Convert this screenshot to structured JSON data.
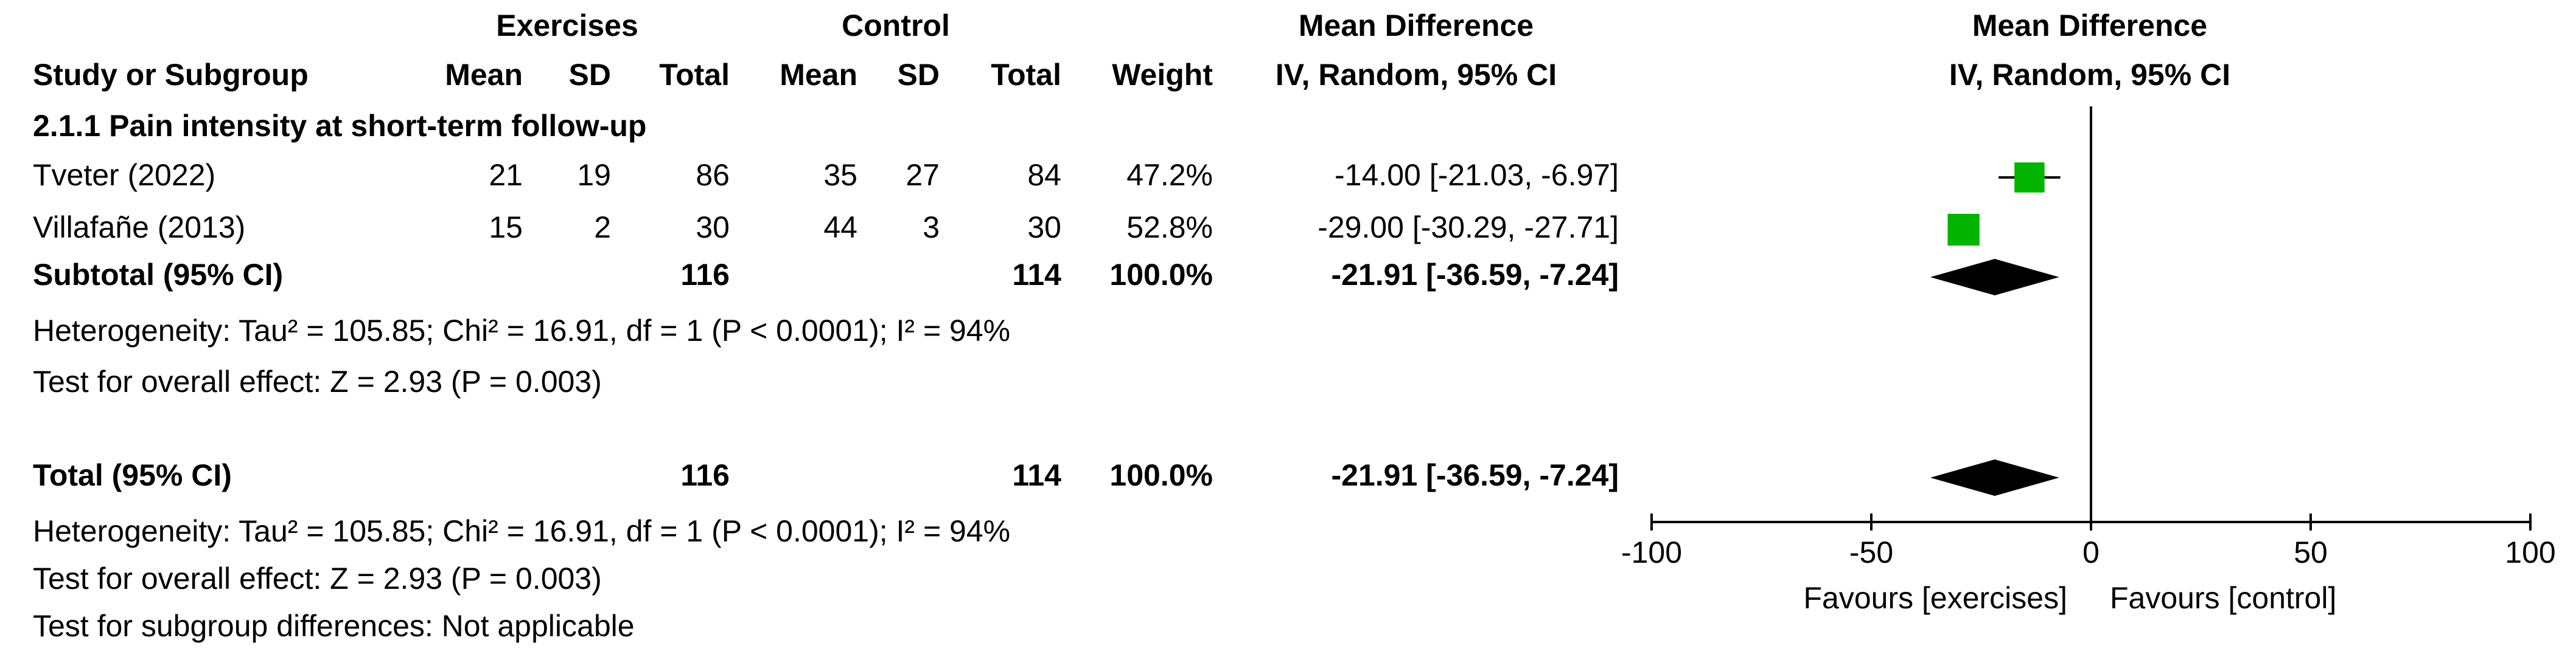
{
  "chart_data": {
    "type": "forest",
    "group_headers": [
      "Exercises",
      "Control"
    ],
    "columns": [
      "Study or Subgroup",
      "Mean",
      "SD",
      "Total",
      "Mean",
      "SD",
      "Total",
      "Weight"
    ],
    "effect_header": [
      "Mean Difference",
      "IV, Random, 95% CI"
    ],
    "plot_header": [
      "Mean Difference",
      "IV, Random, 95% CI"
    ],
    "subgroup": "2.1.1 Pain intensity at short-term follow-up",
    "studies": [
      {
        "name": "Tveter (2022)",
        "exp_mean": 21,
        "exp_sd": 19,
        "exp_total": 86,
        "ctl_mean": 35,
        "ctl_sd": 27,
        "ctl_total": 84,
        "weight": 47.2,
        "weight_label": "47.2%",
        "md": -14,
        "ci": [
          -21.03,
          -6.97
        ],
        "md_label": "-14.00 [-21.03, -6.97]"
      },
      {
        "name": "Villafañe (2013)",
        "exp_mean": 15,
        "exp_sd": 2,
        "exp_total": 30,
        "ctl_mean": 44,
        "ctl_sd": 3,
        "ctl_total": 30,
        "weight": 52.8,
        "weight_label": "52.8%",
        "md": -29,
        "ci": [
          -30.29,
          -27.71
        ],
        "md_label": "-29.00 [-30.29, -27.71]"
      }
    ],
    "subtotal": {
      "name": "Subtotal (95% CI)",
      "exp_total": 116,
      "ctl_total": 114,
      "weight": 100,
      "weight_label": "100.0%",
      "md": -21.91,
      "ci": [
        -36.59,
        -7.24
      ],
      "md_label": "-21.91 [-36.59, -7.24]",
      "heterogeneity": "Heterogeneity: Tau² = 105.85; Chi² = 16.91, df = 1 (P < 0.0001); I² = 94%",
      "overall_effect": "Test for overall effect: Z = 2.93 (P = 0.003)"
    },
    "total": {
      "name": "Total (95% CI)",
      "exp_total": 116,
      "ctl_total": 114,
      "weight": 100,
      "weight_label": "100.0%",
      "md": -21.91,
      "ci": [
        -36.59,
        -7.24
      ],
      "md_label": "-21.91 [-36.59, -7.24]",
      "heterogeneity": "Heterogeneity: Tau² = 105.85; Chi² = 16.91, df = 1 (P < 0.0001); I² = 94%",
      "overall_effect": "Test for overall effect: Z = 2.93 (P = 0.003)",
      "subgroup_differences": "Test for subgroup differences: Not applicable"
    },
    "xlim": [
      -100,
      100
    ],
    "xticks": [
      -100,
      -50,
      0,
      50,
      100
    ],
    "favours": [
      "Favours [exercises]",
      "Favours [control]"
    ],
    "study_color": "#00b400",
    "pooled_color": "#000000"
  }
}
